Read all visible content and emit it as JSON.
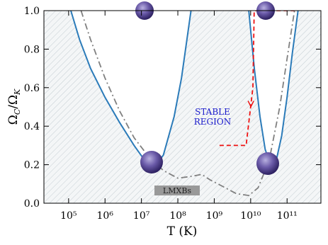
{
  "chart_data": {
    "type": "line",
    "xlabel": "T (K)",
    "ylabel": [
      "Ω",
      "C",
      "/Ω",
      "K"
    ],
    "log_x": true,
    "xlim": [
      21000,
      850000000000
    ],
    "ylim": [
      0,
      1
    ],
    "xticks": [
      {
        "value": 100000,
        "label": "10⁵"
      },
      {
        "value": 1000000,
        "label": "10⁶"
      },
      {
        "value": 10000000,
        "label": "10⁷"
      },
      {
        "value": 100000000,
        "label": "10⁸"
      },
      {
        "value": 1000000000,
        "label": "10⁹"
      },
      {
        "value": 10000000000,
        "label": "10¹⁰"
      },
      {
        "value": 100000000000,
        "label": "10¹¹"
      }
    ],
    "yticks": [
      {
        "value": 0,
        "label": "0.0"
      },
      0.2,
      0.4,
      0.6,
      0.8,
      {
        "value": 1,
        "label": "1.0"
      }
    ],
    "annotations": [
      "STABLE",
      "REGION",
      "LMXBs"
    ],
    "series": [
      {
        "color": "#2b7bb9",
        "style": "solid",
        "x": [
          115000,
          200000,
          400000,
          1000000,
          2500000,
          6300000,
          12600000,
          21000000,
          40000000,
          79000000,
          126000000,
          230000000
        ],
        "values": [
          1.0,
          0.85,
          0.7,
          0.55,
          0.42,
          0.3,
          0.22,
          0.18,
          0.25,
          0.45,
          0.65,
          1.0
        ]
      },
      {
        "color": "#2b7bb9",
        "style": "solid",
        "x": [
          8900000000,
          12600000000,
          18000000000,
          25000000000,
          35000000000,
          50000000000,
          71000000000,
          100000000000,
          140000000000,
          200000000000
        ],
        "values": [
          1.0,
          0.7,
          0.45,
          0.28,
          0.2,
          0.22,
          0.35,
          0.55,
          0.78,
          1.0
        ]
      },
      {
        "color": "#808080",
        "style": "dashdot",
        "x": [
          220000,
          400000,
          1000000,
          2500000,
          6300000,
          16000000,
          40000000,
          100000000,
          250000000,
          450000000,
          790000000,
          1600000000,
          4000000000,
          8900000000,
          16000000000,
          32000000000,
          63000000000,
          100000000000,
          160000000000
        ],
        "values": [
          1.0,
          0.85,
          0.65,
          0.48,
          0.34,
          0.24,
          0.17,
          0.13,
          0.14,
          0.15,
          0.12,
          0.09,
          0.05,
          0.04,
          0.08,
          0.22,
          0.5,
          0.75,
          1.0
        ]
      },
      {
        "color": "#ee1111",
        "style": "dashed",
        "x": [
          1400000000,
          7500000000,
          11500000000,
          12500000000,
          160000000000
        ],
        "values": [
          0.3,
          0.3,
          0.6,
          1.0,
          1.0
        ]
      }
    ]
  }
}
